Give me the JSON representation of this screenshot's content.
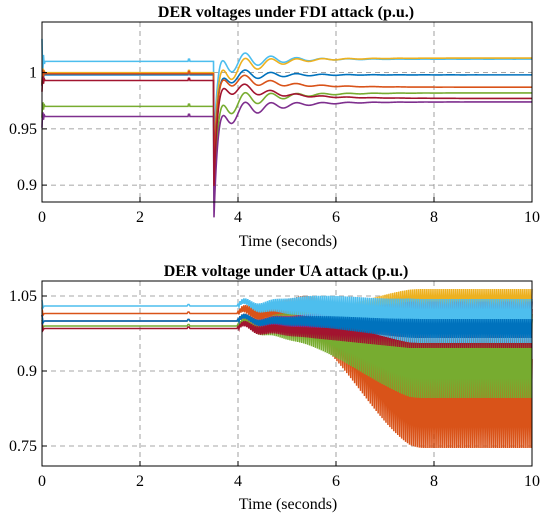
{
  "chart_data": [
    {
      "type": "line",
      "title": "DER voltages under FDI attack (p.u.)",
      "xlabel": "Time (seconds)",
      "ylabel": "",
      "xlim": [
        0,
        10
      ],
      "ylim": [
        0.885,
        1.045
      ],
      "xticks": [
        0,
        2,
        4,
        6,
        8,
        10
      ],
      "yticks": [
        0.9,
        0.95,
        1
      ],
      "ytick_labels": [
        "0.9",
        "0.95",
        "1"
      ],
      "grid": true,
      "events": {
        "small_blip": 3.0,
        "attack_start": 3.5
      },
      "series": [
        {
          "color": "#4dbeee",
          "pre": 1.01,
          "post": 1.012
        },
        {
          "color": "#edb120",
          "pre": 1.0,
          "post": 1.013
        },
        {
          "color": "#0072bd",
          "pre": 0.998,
          "post": 0.998
        },
        {
          "color": "#d95319",
          "pre": 0.999,
          "post": 0.987
        },
        {
          "color": "#77ac30",
          "pre": 0.97,
          "post": 0.982
        },
        {
          "color": "#7e2f8e",
          "pre": 0.961,
          "post": 0.974
        },
        {
          "color": "#a2142f",
          "pre": 0.993,
          "post": 0.977
        }
      ]
    },
    {
      "type": "line",
      "title": "DER voltage under UA attack (p.u.)",
      "xlabel": "Time (seconds)",
      "ylabel": "",
      "xlim": [
        0,
        10
      ],
      "ylim": [
        0.71,
        1.08
      ],
      "xticks": [
        0,
        2,
        4,
        6,
        8,
        10
      ],
      "yticks": [
        0.75,
        0.9,
        1.05
      ],
      "ytick_labels": [
        "0.75",
        "0.9",
        "1.05"
      ],
      "grid": true,
      "events": {
        "small_blip": 3.0,
        "attack_start": 4.0
      },
      "series": [
        {
          "color": "#edb120",
          "pre": 1.0,
          "post_low": 1.01,
          "post_high": 1.06
        },
        {
          "color": "#7e2f8e",
          "pre": 1.0,
          "post_low": 0.99,
          "post_high": 1.035
        },
        {
          "color": "#4dbeee",
          "pre": 1.03,
          "post_low": 0.96,
          "post_high": 1.04
        },
        {
          "color": "#0072bd",
          "pre": 1.0,
          "post_low": 0.97,
          "post_high": 1.0
        },
        {
          "color": "#a2142f",
          "pre": 0.985,
          "post_low": 0.95,
          "post_high": 1.02
        },
        {
          "color": "#77ac30",
          "pre": 0.99,
          "post_low": 0.85,
          "post_high": 1.01
        },
        {
          "color": "#d95319",
          "pre": 1.015,
          "post_low": 0.75,
          "post_high": 0.92
        }
      ]
    }
  ]
}
